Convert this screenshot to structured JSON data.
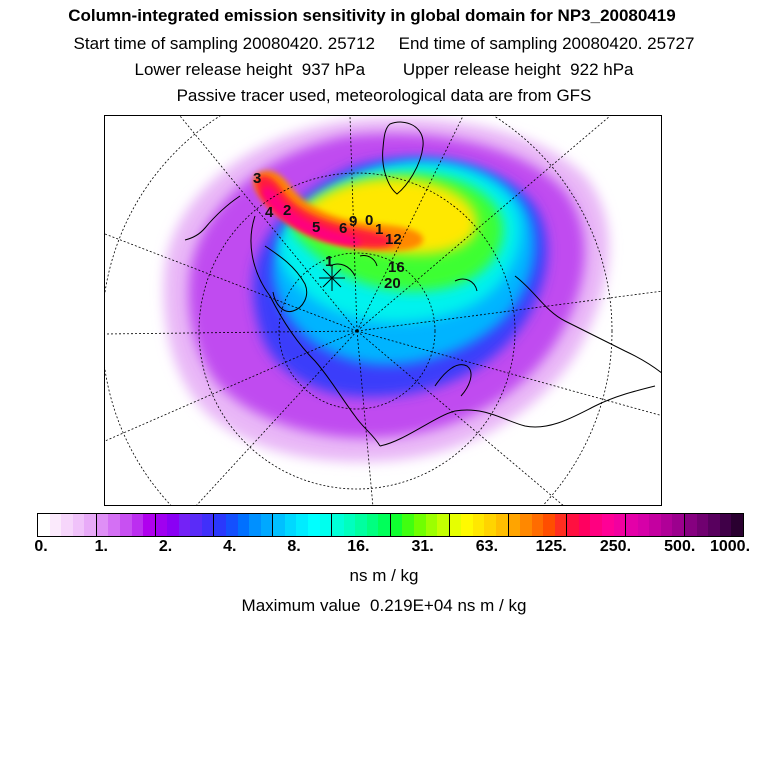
{
  "header": {
    "title": "Column-integrated emission sensitivity in global domain for NP3_20080419",
    "sampling_line": "Start time of sampling 20080420. 25712     End time of sampling 20080420. 25727",
    "release_line": "Lower release height  937 hPa        Upper release height  922 hPa",
    "tracer_line": "Passive tracer used, meteorological data are from GFS"
  },
  "map": {
    "track_labels": [
      "3",
      "4",
      "2",
      "5",
      "6",
      "9",
      "0",
      "1",
      "12",
      "16",
      "20"
    ],
    "release_marker": "1"
  },
  "colorbar": {
    "tick_labels": [
      "0.",
      "1.",
      "2.",
      "4.",
      "8.",
      "16.",
      "31.",
      "63.",
      "125.",
      "250.",
      "500.",
      "1000."
    ],
    "colors": [
      "#ffffff",
      "#fbeafc",
      "#f6d6fb",
      "#f0c2fa",
      "#e8aaf8",
      "#df8ff6",
      "#d470f4",
      "#c850f2",
      "#bc2ef0",
      "#b000ee",
      "#a000f0",
      "#8a00f4",
      "#7422f6",
      "#5a2cf8",
      "#4030fa",
      "#2a38fc",
      "#1450fe",
      "#0070ff",
      "#0090ff",
      "#00a8ff",
      "#00c0ff",
      "#00d8ff",
      "#00ecff",
      "#00ffff",
      "#00ffee",
      "#00ffd8",
      "#00ffbe",
      "#00ffa0",
      "#00ff80",
      "#00ff5a",
      "#10ff30",
      "#40ff10",
      "#70ff00",
      "#9cff00",
      "#c4ff00",
      "#e6ff00",
      "#fffa00",
      "#ffe800",
      "#ffd400",
      "#ffbe00",
      "#ffa400",
      "#ff8800",
      "#ff6c00",
      "#ff4e00",
      "#ff2e20",
      "#ff1040",
      "#ff0060",
      "#ff0080",
      "#ff0096",
      "#f200a0",
      "#e400a8",
      "#d600a8",
      "#c400a0",
      "#b00098",
      "#9c008e",
      "#860080",
      "#700070",
      "#58005e",
      "#400048",
      "#2a0030"
    ],
    "unit": "ns m / kg"
  },
  "footer": {
    "maximum_value_text": "Maximum value  0.219E+04 ns m / kg"
  }
}
